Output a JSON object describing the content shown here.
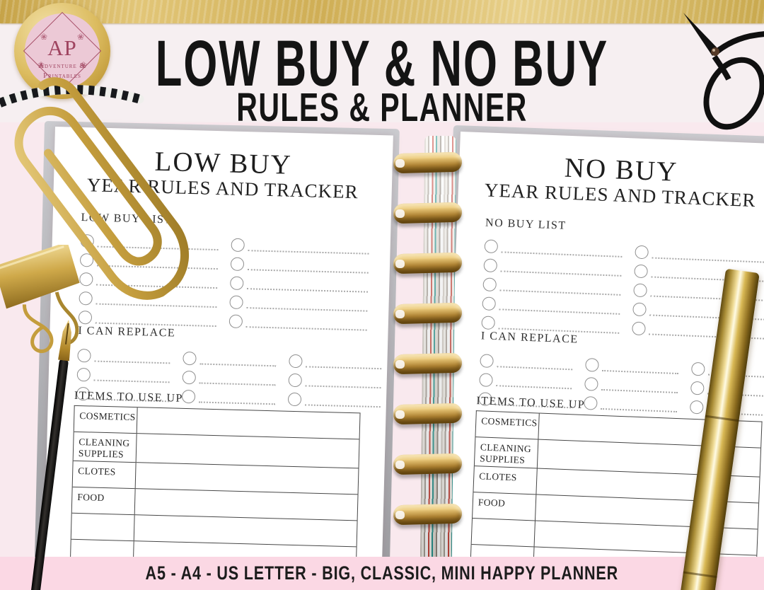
{
  "banner": {
    "line1": "LOW BUY & NO BUY",
    "line2": "RULES & PLANNER"
  },
  "logo": {
    "initials": "AP",
    "name_line1": "Adventure &",
    "name_line2": "Printables",
    "flower_icon": "❀"
  },
  "pages": {
    "left": {
      "title": "LOW BUY",
      "subtitle": "YEAR RULES AND TRACKER",
      "list_label": "LOW BUY LIST",
      "replace_label": "I CAN REPLACE",
      "useup_label": "ITEMS TO USE UP",
      "table_rows": [
        "COSMETICS",
        "CLEANING SUPPLIES",
        "CLOTES",
        "FOOD",
        "",
        ""
      ]
    },
    "right": {
      "title": "NO BUY",
      "subtitle": "YEAR RULES AND TRACKER",
      "list_label": "NO BUY LIST",
      "replace_label": "I CAN REPLACE",
      "useup_label": "ITEMS TO USE UP",
      "table_rows": [
        "COSMETICS",
        "CLEANING SUPPLIES",
        "CLOTES",
        "FOOD",
        "",
        ""
      ]
    }
  },
  "checklists": {
    "list": {
      "columns": 2,
      "rows": 5
    },
    "replace": {
      "columns": 3,
      "rows": 3
    }
  },
  "binding": {
    "disc_count": 8
  },
  "footer": {
    "text": "A5 - A4 - US LETTER - BIG, CLASSIC, MINI HAPPY PLANNER"
  },
  "colors": {
    "gold_band": "#cfae55",
    "scene_pink": "#f9e9ee",
    "footer_pink": "#fbd8e4",
    "logo_gold": "#dcbc60",
    "logo_pink": "#ecc9d6",
    "logo_maroon": "#9f4460",
    "disc_gold": "#b08434",
    "title_text": "#141414"
  }
}
